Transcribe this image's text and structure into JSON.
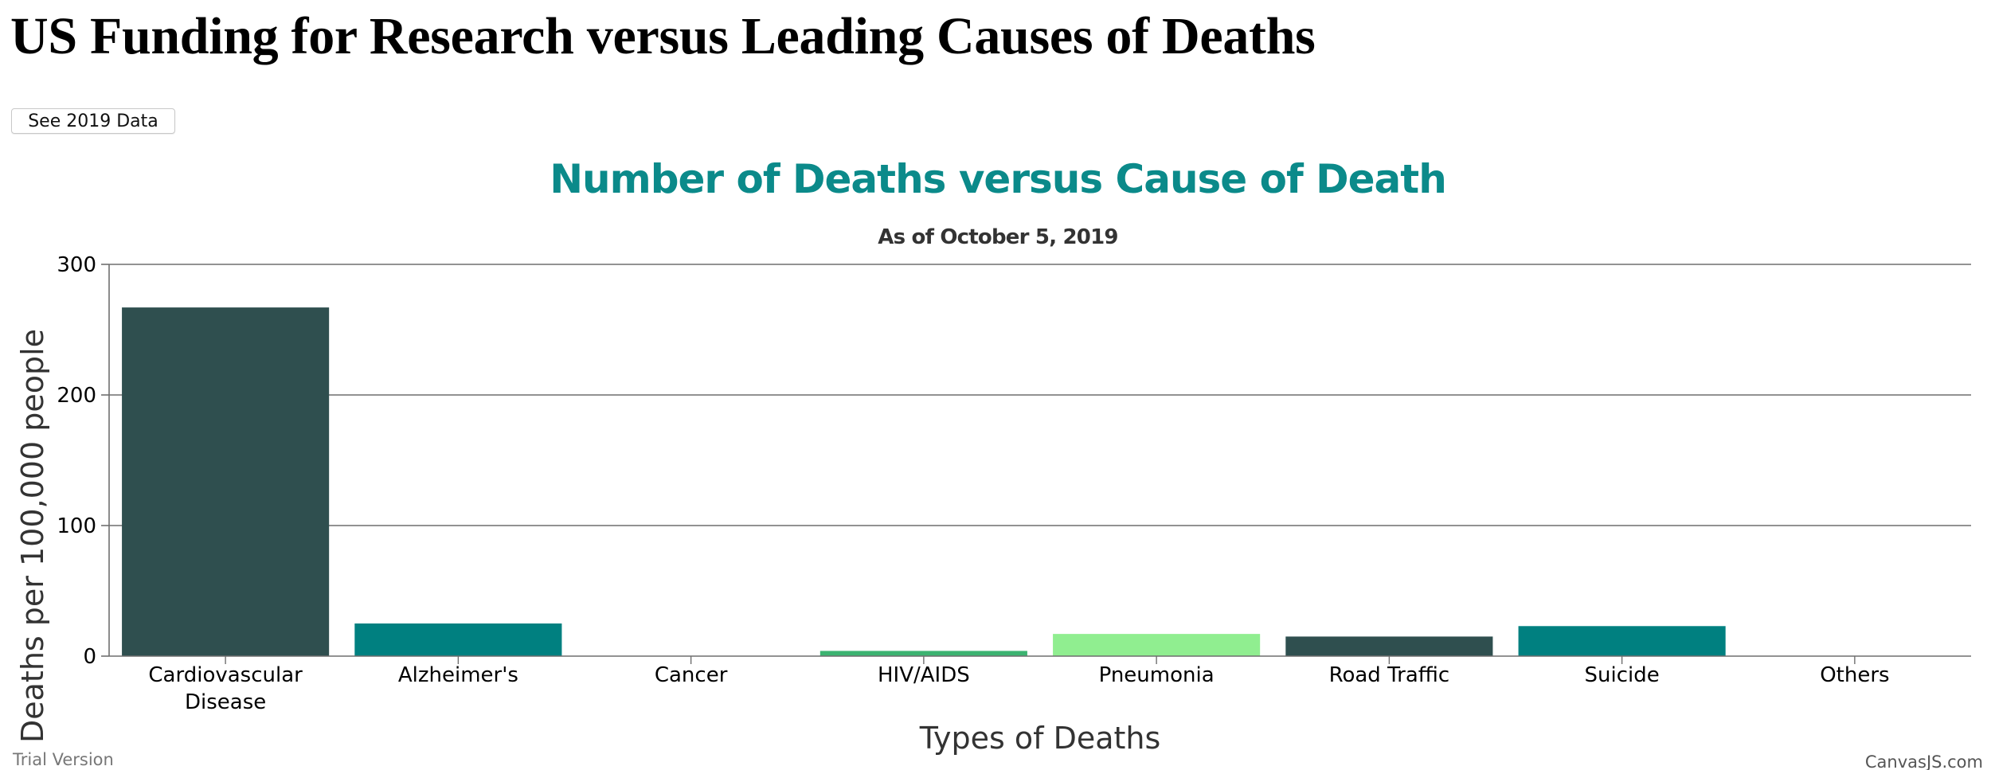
{
  "page": {
    "title": "US Funding for Research versus Leading Causes of Deaths",
    "toggle_button_label": "See 2019 Data"
  },
  "chart_data": {
    "type": "bar",
    "title": "Number of Deaths versus Cause of Death",
    "subtitle": "As of October 5, 2019",
    "xlabel": "Types of Deaths",
    "ylabel": "Deaths per 100,000 people",
    "ylim": [
      0,
      300
    ],
    "yticks": [
      0,
      100,
      200,
      300
    ],
    "grid": true,
    "categories": [
      [
        "Cardiovascular",
        "Disease"
      ],
      [
        "Alzheimer's"
      ],
      [
        "Cancer"
      ],
      [
        "HIV/AIDS"
      ],
      [
        "Pneumonia"
      ],
      [
        "Road Traffic"
      ],
      [
        "Suicide"
      ],
      [
        "Others"
      ]
    ],
    "values": [
      267,
      25,
      0,
      4,
      17,
      15,
      23,
      0
    ],
    "colors": [
      "#2f4f4f",
      "#008080",
      "#2e8b57",
      "#3cb371",
      "#90ee90",
      "#2f4f4f",
      "#008080",
      "#2e8b57"
    ],
    "title_color": "#0b8a8a",
    "credits": {
      "left": "Trial Version",
      "right": "CanvasJS.com"
    }
  }
}
